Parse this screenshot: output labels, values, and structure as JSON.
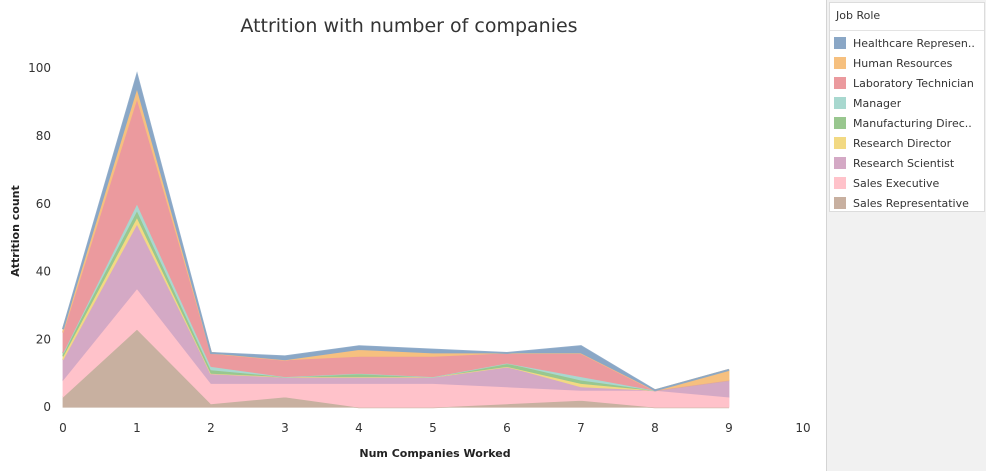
{
  "chart_data": {
    "type": "area",
    "stacked": true,
    "title": "Attrition with number of companies",
    "xlabel": "Num Companies Worked",
    "ylabel": "Attrition count",
    "x": [
      0,
      1,
      2,
      3,
      4,
      5,
      6,
      7,
      8,
      9
    ],
    "xlim": [
      0,
      10
    ],
    "ylim": [
      -2,
      103
    ],
    "xticks": [
      "0",
      "1",
      "2",
      "3",
      "4",
      "5",
      "6",
      "7",
      "8",
      "9",
      "10"
    ],
    "yticks": [
      "0",
      "20",
      "40",
      "60",
      "80",
      "100"
    ],
    "grid": false,
    "legend_position": "right",
    "legend_title": "Job Role",
    "series": [
      {
        "name": "Sales Representative",
        "legend_label": "Sales Representative",
        "color": "#c8b0a0",
        "values": [
          3,
          23,
          1,
          3,
          0,
          0,
          1,
          2,
          0,
          0
        ]
      },
      {
        "name": "Sales Executive",
        "legend_label": "Sales Executive",
        "color": "#ffc2ca",
        "values": [
          5,
          12,
          6,
          4,
          7,
          7,
          5,
          3,
          5,
          3
        ]
      },
      {
        "name": "Research Scientist",
        "legend_label": "Research Scientist",
        "color": "#d4a9c5",
        "values": [
          6,
          19,
          3,
          2,
          2,
          2,
          6,
          1,
          0,
          5
        ]
      },
      {
        "name": "Research Director",
        "legend_label": "Research Director",
        "color": "#f2d983",
        "values": [
          1,
          2,
          0,
          0,
          0,
          0,
          0,
          1,
          0,
          0
        ]
      },
      {
        "name": "Manufacturing Director",
        "legend_label": "Manufacturing Direc..",
        "color": "#99c78f",
        "values": [
          1,
          2,
          1,
          0,
          1,
          0,
          1,
          1,
          0,
          0
        ]
      },
      {
        "name": "Manager",
        "legend_label": "Manager",
        "color": "#a8d8cf",
        "values": [
          0,
          2,
          1,
          0,
          0,
          0,
          0,
          1,
          0,
          0
        ]
      },
      {
        "name": "Laboratory Technician",
        "legend_label": "Laboratory Technician",
        "color": "#eb9a9e",
        "values": [
          6,
          31,
          4,
          5,
          5,
          6,
          3,
          7,
          0,
          0
        ]
      },
      {
        "name": "Human Resources",
        "legend_label": "Human Resources",
        "color": "#f6c07f",
        "values": [
          1,
          3,
          0,
          0,
          2,
          1,
          0,
          0,
          0,
          3
        ]
      },
      {
        "name": "Healthcare Representative",
        "legend_label": "Healthcare Represen..",
        "color": "#8aa7c6",
        "values": [
          0,
          4,
          0,
          1,
          1,
          1,
          0,
          2,
          0,
          0
        ]
      }
    ]
  }
}
